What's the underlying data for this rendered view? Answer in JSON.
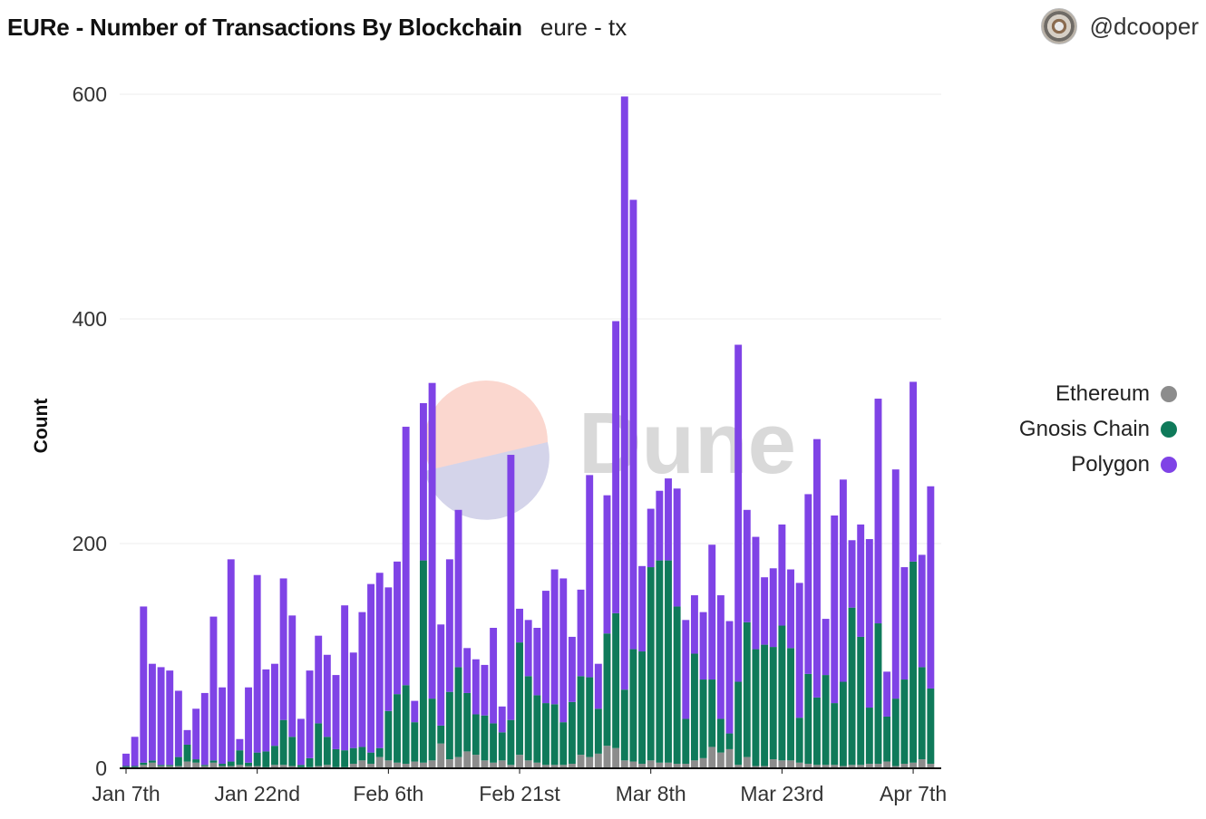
{
  "header": {
    "title": "EURe - Number of Transactions By Blockchain",
    "subtitle": "eure - tx",
    "username": "@dcooper"
  },
  "watermark": {
    "text": "Dune"
  },
  "colors": {
    "ethereum": "#8c8c8c",
    "gnosis": "#0f7a5a",
    "polygon": "#7f43e6",
    "grid": "#ececec",
    "axis": "#111111"
  },
  "chart_data": {
    "type": "bar",
    "stacked": true,
    "title": "EURe - Number of Transactions By Blockchain",
    "xlabel": "",
    "ylabel": "Count",
    "ylim": [
      0,
      600
    ],
    "yticks": [
      0,
      200,
      400,
      600
    ],
    "grid": true,
    "legend_position": "right",
    "xticks": [
      {
        "index": 0,
        "label": "Jan 7th"
      },
      {
        "index": 15,
        "label": "Jan 22nd"
      },
      {
        "index": 30,
        "label": "Feb 6th"
      },
      {
        "index": 45,
        "label": "Feb 21st"
      },
      {
        "index": 60,
        "label": "Mar 8th"
      },
      {
        "index": 75,
        "label": "Mar 23rd"
      },
      {
        "index": 90,
        "label": "Apr 7th"
      }
    ],
    "series": [
      {
        "name": "Ethereum",
        "values": [
          1,
          1,
          3,
          5,
          2,
          2,
          2,
          6,
          5,
          2,
          5,
          2,
          2,
          3,
          2,
          2,
          1,
          3,
          3,
          2,
          1,
          1,
          2,
          3,
          1,
          1,
          4,
          7,
          4,
          10,
          7,
          5,
          4,
          6,
          5,
          7,
          22,
          8,
          10,
          15,
          12,
          7,
          5,
          7,
          3,
          12,
          7,
          5,
          3,
          3,
          3,
          4,
          12,
          10,
          13,
          20,
          18,
          7,
          6,
          4,
          7,
          5,
          5,
          4,
          4,
          7,
          9,
          19,
          14,
          17,
          3,
          10,
          2,
          2,
          8,
          7,
          7,
          5,
          4,
          3,
          3,
          3,
          2,
          3,
          3,
          4,
          4,
          6,
          2,
          4,
          5,
          8,
          4
        ]
      },
      {
        "name": "Gnosis Chain",
        "values": [
          1,
          1,
          2,
          2,
          1,
          1,
          8,
          15,
          3,
          1,
          2,
          2,
          4,
          13,
          3,
          12,
          14,
          17,
          40,
          26,
          2,
          8,
          38,
          25,
          16,
          15,
          14,
          12,
          10,
          8,
          44,
          61,
          70,
          35,
          180,
          55,
          16,
          60,
          80,
          52,
          36,
          40,
          35,
          25,
          40,
          100,
          75,
          60,
          55,
          54,
          38,
          55,
          70,
          71,
          40,
          100,
          120,
          63,
          100,
          100,
          172,
          180,
          180,
          140,
          40,
          95,
          70,
          60,
          30,
          14,
          74,
          120,
          104,
          108,
          100,
          120,
          100,
          40,
          80,
          60,
          80,
          55,
          75,
          140,
          114,
          50,
          125,
          40,
          60,
          75,
          179,
          82,
          67
        ]
      },
      {
        "name": "Polygon",
        "values": [
          11,
          26,
          139,
          86,
          87,
          84,
          59,
          13,
          45,
          64,
          128,
          68,
          180,
          10,
          67,
          158,
          73,
          73,
          126,
          108,
          41,
          78,
          78,
          73,
          66,
          129,
          85,
          120,
          150,
          156,
          110,
          118,
          230,
          19,
          140,
          281,
          90,
          118,
          140,
          40,
          49,
          45,
          85,
          23,
          236,
          30,
          50,
          60,
          100,
          120,
          128,
          58,
          77,
          180,
          40,
          123,
          260,
          528,
          400,
          76,
          52,
          62,
          73,
          105,
          88,
          52,
          60,
          120,
          110,
          100,
          300,
          100,
          100,
          60,
          70,
          90,
          70,
          120,
          160,
          230,
          50,
          167,
          180,
          60,
          100,
          150,
          200,
          40,
          204,
          100,
          160,
          100,
          180
        ]
      }
    ]
  }
}
